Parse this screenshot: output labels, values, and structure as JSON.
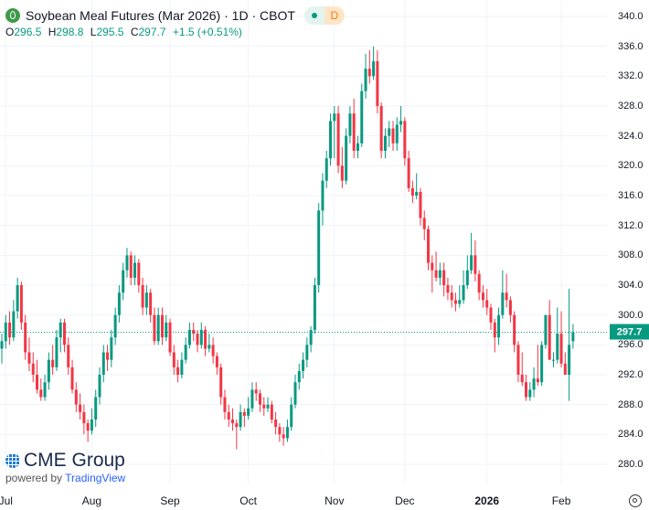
{
  "header": {
    "title": "Soybean Meal Futures (Mar 2026) · 1D · CBOT",
    "market_status_icon": "green-dot-icon",
    "delay_badge": "D",
    "ohlc": {
      "o_label": "O",
      "o": "296.5",
      "h_label": "H",
      "h": "298.8",
      "l_label": "L",
      "l": "295.5",
      "c_label": "C",
      "c": "297.7",
      "change": "+1.5 (+0.51%)"
    }
  },
  "branding": {
    "logo_text": "CME Group",
    "powered_by": "powered by",
    "tradingview": "TradingView"
  },
  "colors": {
    "up": "#089981",
    "down": "#f23645",
    "grid": "#f0f3fa",
    "current_price": "#089981"
  },
  "current_price_label": "297.7",
  "chart_data": {
    "type": "candlestick",
    "title": "Soybean Meal Futures (Mar 2026) · 1D · CBOT",
    "ylim": [
      276,
      341
    ],
    "y_ticks": [
      "340.0",
      "336.0",
      "332.0",
      "328.0",
      "324.0",
      "320.0",
      "316.0",
      "312.0",
      "308.0",
      "304.0",
      "300.0",
      "296.0",
      "292.0",
      "288.0",
      "284.0",
      "280.0"
    ],
    "x_ticks": [
      {
        "label": "Jul",
        "index": 1
      },
      {
        "label": "Aug",
        "index": 23
      },
      {
        "label": "Sep",
        "index": 43
      },
      {
        "label": "Oct",
        "index": 63
      },
      {
        "label": "Nov",
        "index": 85
      },
      {
        "label": "Dec",
        "index": 103
      },
      {
        "label": "2026",
        "index": 124,
        "bold": true
      },
      {
        "label": "Feb",
        "index": 143
      }
    ],
    "current_price": 297.7,
    "grid": true,
    "ohlc": [
      [
        295.5,
        297.5,
        293.5,
        296.5
      ],
      [
        296.5,
        300,
        295.5,
        299
      ],
      [
        299,
        300.5,
        296,
        297
      ],
      [
        297,
        302,
        296.5,
        300.5
      ],
      [
        300.5,
        305,
        299.5,
        304
      ],
      [
        304,
        304.5,
        298,
        299
      ],
      [
        299,
        300,
        294,
        295
      ],
      [
        295,
        297,
        292.5,
        293.5
      ],
      [
        293.5,
        295,
        291,
        292
      ],
      [
        292,
        294,
        289.5,
        290
      ],
      [
        290,
        291.5,
        288.5,
        289
      ],
      [
        289,
        292,
        288.5,
        291
      ],
      [
        291,
        295,
        290,
        294
      ],
      [
        294,
        296,
        292,
        293
      ],
      [
        293,
        298,
        292.5,
        297
      ],
      [
        297,
        299.5,
        295,
        299
      ],
      [
        299,
        299.5,
        295,
        296
      ],
      [
        296,
        297,
        292,
        293
      ],
      [
        293,
        294,
        289.5,
        290
      ],
      [
        290,
        291,
        287,
        288
      ],
      [
        288,
        289.5,
        286,
        287
      ],
      [
        287,
        288,
        284,
        285.5
      ],
      [
        285.5,
        286,
        283,
        284.5
      ],
      [
        284.5,
        287.5,
        284,
        286
      ],
      [
        286,
        290,
        285,
        289
      ],
      [
        289,
        293,
        288,
        292
      ],
      [
        292,
        296,
        291,
        295
      ],
      [
        295,
        296,
        292.5,
        294
      ],
      [
        294,
        298,
        293,
        297
      ],
      [
        297,
        301,
        296,
        300
      ],
      [
        300,
        304,
        299,
        303
      ],
      [
        303,
        307,
        302,
        306
      ],
      [
        306,
        309,
        305,
        308
      ],
      [
        308,
        308.5,
        304,
        305
      ],
      [
        305,
        308,
        304,
        307
      ],
      [
        307,
        307.5,
        303,
        304
      ],
      [
        304,
        305,
        300,
        301
      ],
      [
        301,
        304,
        300,
        303
      ],
      [
        303,
        303.5,
        299,
        300
      ],
      [
        300,
        301,
        296,
        296.5
      ],
      [
        296.5,
        301,
        296,
        300
      ],
      [
        300,
        301,
        296,
        297
      ],
      [
        297,
        300,
        296.5,
        299
      ],
      [
        299,
        299.5,
        294.5,
        295
      ],
      [
        295,
        296,
        292,
        293
      ],
      [
        293,
        294,
        291,
        292
      ],
      [
        292,
        295,
        291.5,
        294
      ],
      [
        294,
        297,
        293.5,
        296
      ],
      [
        296,
        299,
        295.5,
        298
      ],
      [
        298,
        299,
        296.5,
        297.5
      ],
      [
        297.5,
        298,
        295,
        296
      ],
      [
        296,
        299,
        295.5,
        298
      ],
      [
        298,
        298.5,
        294.5,
        295.5
      ],
      [
        295.5,
        297.5,
        295,
        296
      ],
      [
        296,
        297,
        293.5,
        294.5
      ],
      [
        294.5,
        295,
        292,
        293
      ],
      [
        293,
        293.5,
        288,
        289
      ],
      [
        289,
        290,
        286,
        287
      ],
      [
        287,
        288,
        285,
        286
      ],
      [
        286,
        287.5,
        284.5,
        285.5
      ],
      [
        285.5,
        286,
        282,
        285
      ],
      [
        285,
        288,
        284.5,
        287
      ],
      [
        287,
        287.5,
        285,
        286.5
      ],
      [
        286.5,
        289,
        286,
        287.5
      ],
      [
        287.5,
        291,
        287,
        290
      ],
      [
        290,
        291,
        288.5,
        289.5
      ],
      [
        289.5,
        290,
        287,
        288
      ],
      [
        288,
        289,
        286.5,
        287.5
      ],
      [
        287.5,
        289,
        287,
        288
      ],
      [
        288,
        288.5,
        285.5,
        286
      ],
      [
        286,
        287,
        284,
        285
      ],
      [
        285,
        285.5,
        283,
        284
      ],
      [
        284,
        285,
        282.5,
        283.5
      ],
      [
        283.5,
        286,
        283,
        285
      ],
      [
        285,
        289,
        284.5,
        288
      ],
      [
        288,
        292,
        287.5,
        291
      ],
      [
        291,
        293.5,
        290,
        292.5
      ],
      [
        292.5,
        295,
        291.5,
        294
      ],
      [
        294,
        297,
        293,
        296
      ],
      [
        296,
        298.5,
        295,
        298
      ],
      [
        298,
        305,
        297.5,
        304
      ],
      [
        304,
        315,
        303,
        314
      ],
      [
        314,
        319,
        312,
        318
      ],
      [
        318,
        322,
        317,
        321
      ],
      [
        321,
        327,
        320,
        326
      ],
      [
        326,
        328,
        321,
        327
      ],
      [
        327,
        328,
        319,
        320
      ],
      [
        320,
        322.5,
        317,
        318
      ],
      [
        318,
        325,
        317.5,
        324
      ],
      [
        324,
        328,
        323,
        327
      ],
      [
        327,
        329,
        321,
        322
      ],
      [
        322,
        324,
        321,
        323
      ],
      [
        323,
        331,
        322.5,
        330
      ],
      [
        330,
        335,
        329,
        333
      ],
      [
        333,
        335.5,
        331,
        332
      ],
      [
        332,
        336,
        331.5,
        334
      ],
      [
        334,
        335.5,
        327,
        328
      ],
      [
        328,
        328.5,
        321,
        322
      ],
      [
        322,
        325,
        321,
        324
      ],
      [
        324,
        326,
        322.5,
        325
      ],
      [
        325,
        326,
        322,
        323
      ],
      [
        323,
        326.5,
        322,
        325.5
      ],
      [
        325.5,
        328,
        324.5,
        326
      ],
      [
        326,
        326.5,
        320,
        321
      ],
      [
        321,
        322,
        316.5,
        317
      ],
      [
        317,
        318,
        315,
        316
      ],
      [
        316,
        319,
        315.5,
        316.5
      ],
      [
        316.5,
        317,
        312,
        313
      ],
      [
        313,
        314,
        310,
        311.5
      ],
      [
        311.5,
        312,
        306,
        307
      ],
      [
        307,
        308,
        303,
        306
      ],
      [
        306,
        308.5,
        304.5,
        305
      ],
      [
        305,
        307,
        304,
        306
      ],
      [
        306,
        307,
        302.5,
        304
      ],
      [
        304,
        305,
        302,
        303
      ],
      [
        303,
        304,
        301,
        302
      ],
      [
        302,
        303,
        300.5,
        301.5
      ],
      [
        301.5,
        304,
        301,
        302
      ],
      [
        302,
        306,
        301.5,
        304
      ],
      [
        304,
        308,
        303.5,
        306
      ],
      [
        306,
        311,
        305.5,
        308
      ],
      [
        308,
        310,
        304.5,
        305.5
      ],
      [
        305.5,
        306,
        302,
        303
      ],
      [
        303,
        304,
        301,
        302
      ],
      [
        302,
        303.5,
        300,
        301
      ],
      [
        301,
        301.5,
        298,
        299
      ],
      [
        299,
        299.5,
        295,
        297
      ],
      [
        297,
        301,
        296,
        300
      ],
      [
        300,
        306,
        299.5,
        303
      ],
      [
        303,
        305.5,
        301,
        302
      ],
      [
        302,
        302.5,
        299,
        300
      ],
      [
        300,
        300.5,
        295,
        296
      ],
      [
        296,
        296.5,
        291,
        292
      ],
      [
        292,
        295,
        290.5,
        291
      ],
      [
        291,
        292,
        288.5,
        289
      ],
      [
        289,
        291,
        288.5,
        290
      ],
      [
        290,
        293,
        289,
        291.5
      ],
      [
        291.5,
        296,
        290.5,
        291
      ],
      [
        291,
        296.5,
        290.5,
        296
      ],
      [
        296,
        300,
        295.5,
        300
      ],
      [
        300,
        302,
        294,
        294
      ],
      [
        294,
        295,
        293,
        294
      ],
      [
        294,
        301,
        293.5,
        297.5
      ],
      [
        297.5,
        300.5,
        293,
        293.5
      ],
      [
        293.5,
        295,
        292,
        292
      ],
      [
        292,
        303.5,
        288.5,
        296
      ],
      [
        296.5,
        298.8,
        295.5,
        297.7
      ]
    ]
  },
  "settings_icon": "gear-icon"
}
